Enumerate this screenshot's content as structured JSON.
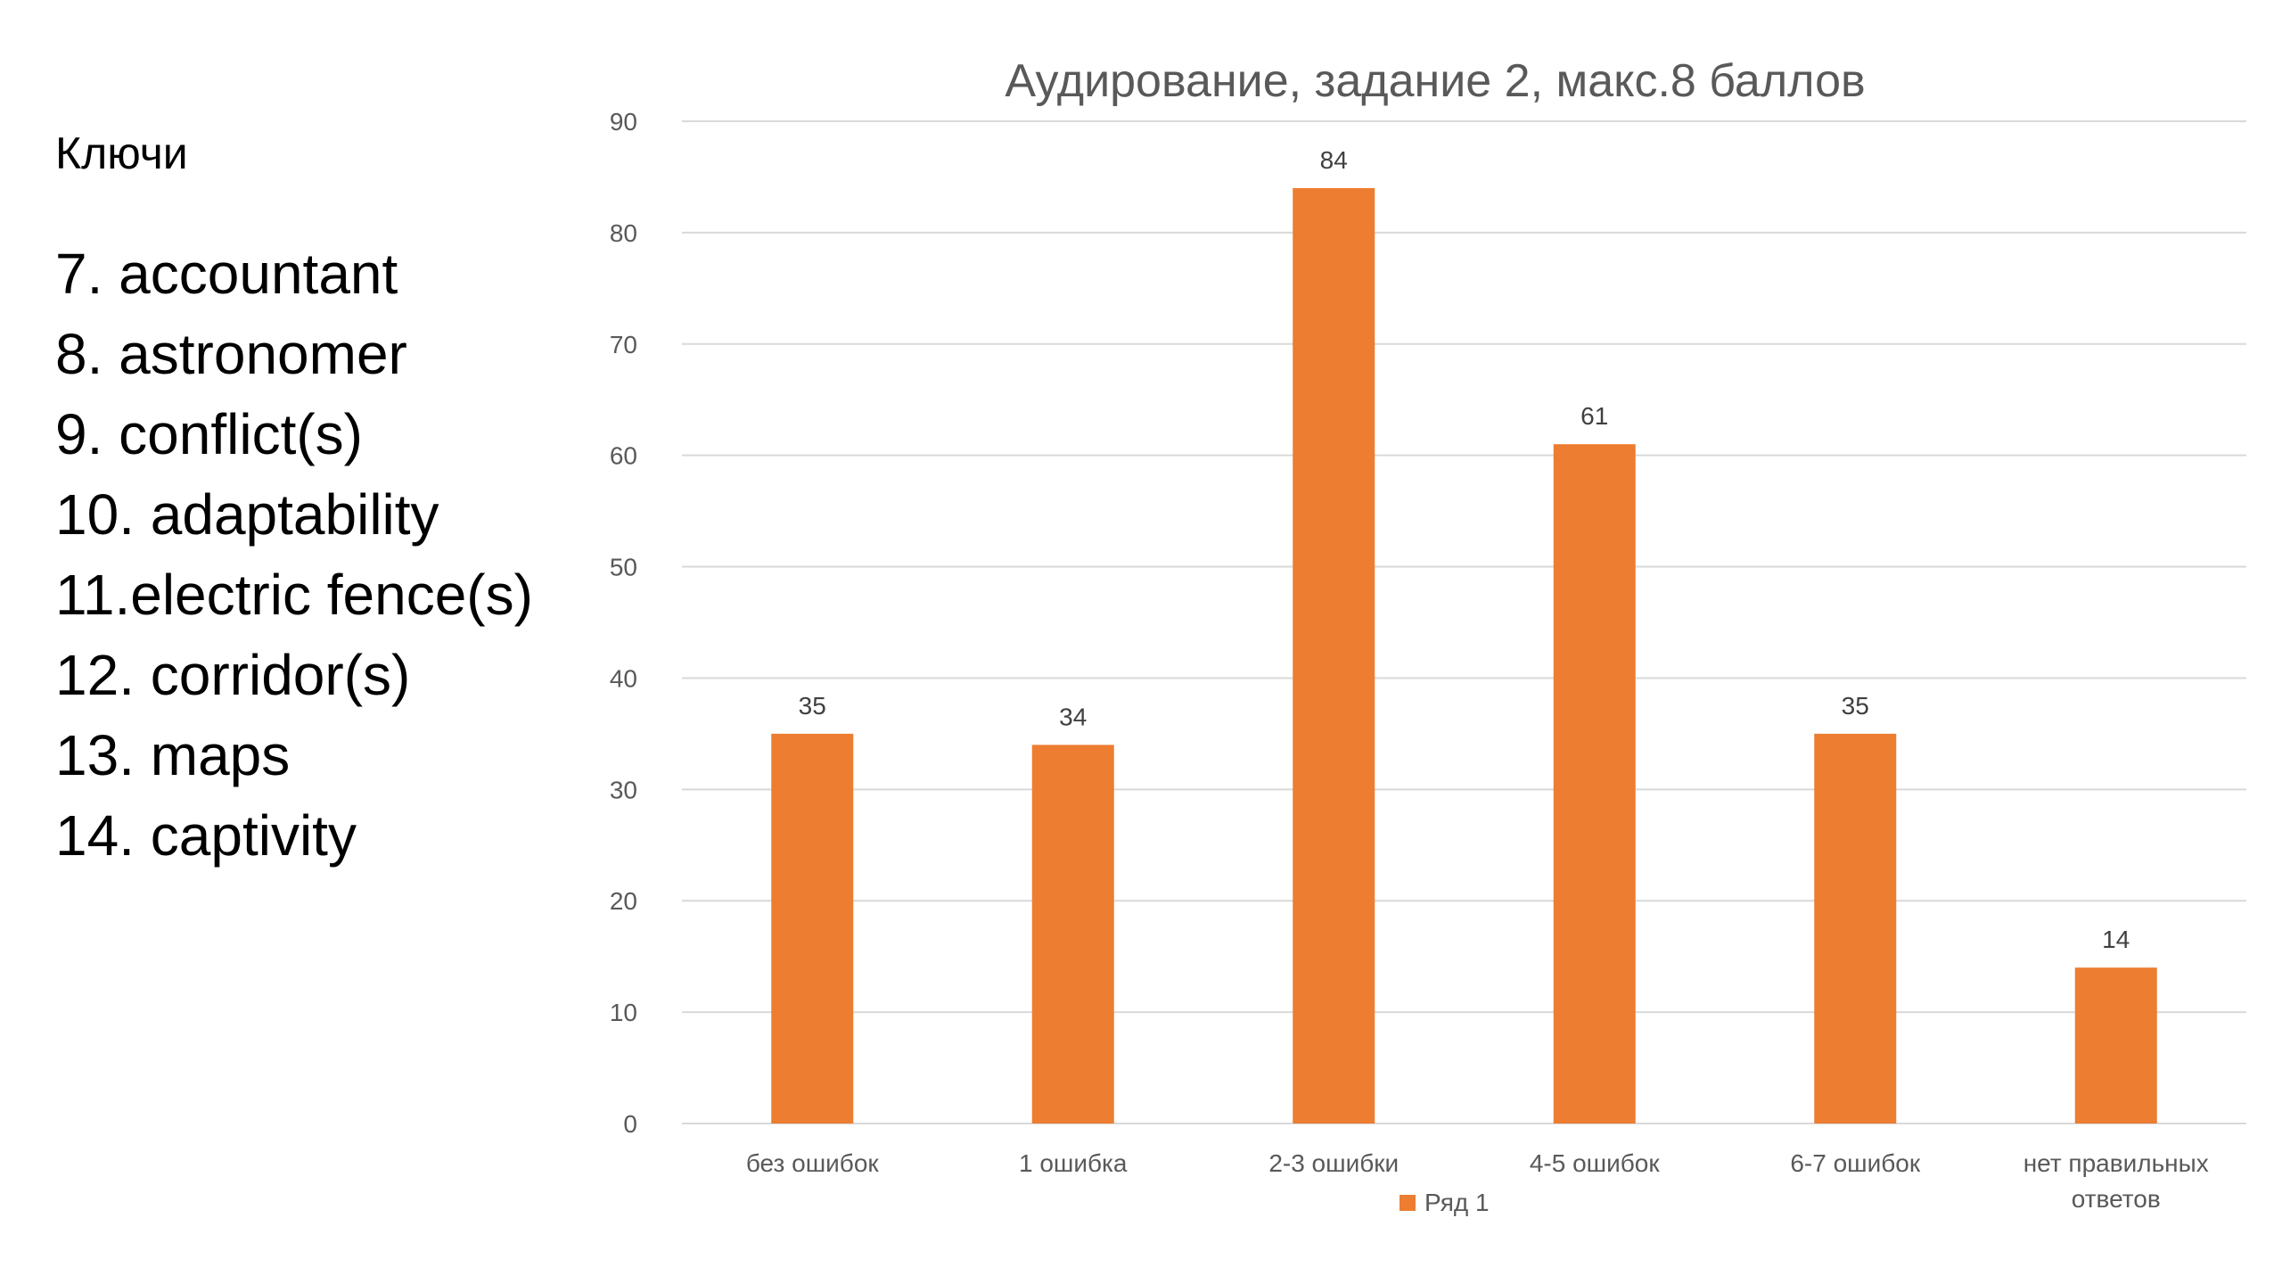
{
  "keys": {
    "heading": "Ключи",
    "items": [
      "7. accountant",
      "8. astronomer",
      "9. conflict(s)",
      "10. adaptability",
      "11.electric fence(s)",
      "12. corridor(s)",
      "13. maps",
      "14. captivity"
    ]
  },
  "colors": {
    "bar": "#ED7D31",
    "grid": "#D9D9D9",
    "axis_text": "#595959",
    "title_text": "#595959"
  },
  "chart_data": {
    "type": "bar",
    "title": "Аудирование, задание 2, макс.8 баллов",
    "xlabel": "",
    "ylabel": "",
    "categories": [
      [
        "без ошибок"
      ],
      [
        "1 ошибка"
      ],
      [
        "2-3 ошибки"
      ],
      [
        "4-5 ошибок"
      ],
      [
        "6-7 ошибок"
      ],
      [
        "нет правильных",
        "ответов"
      ]
    ],
    "series": [
      {
        "name": "Ряд 1",
        "values": [
          35,
          34,
          84,
          61,
          35,
          14
        ]
      }
    ],
    "ylim": [
      0,
      90
    ],
    "yticks": [
      0,
      10,
      20,
      30,
      40,
      50,
      60,
      70,
      80,
      90
    ],
    "grid": true,
    "data_labels": true,
    "legend": "bottom"
  }
}
